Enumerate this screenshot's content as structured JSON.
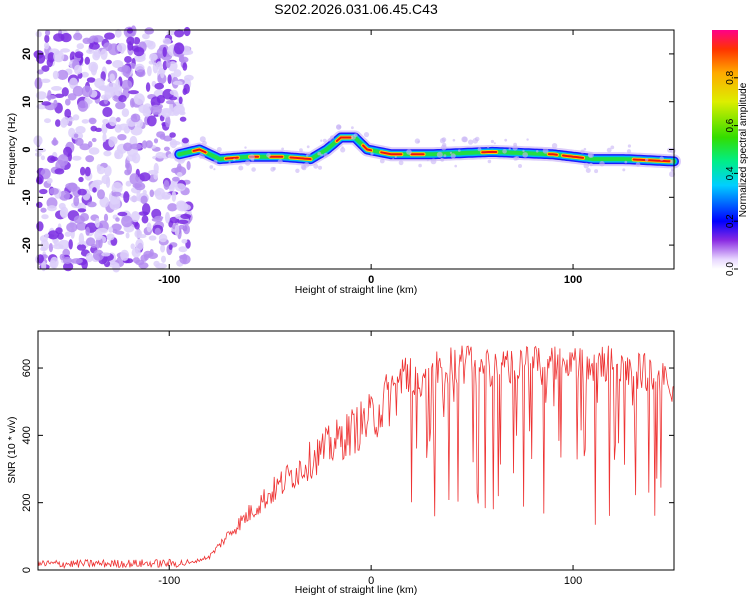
{
  "chart_data": [
    {
      "type": "heatmap",
      "title": "S202.2026.031.06.45.C43",
      "xlabel": "Height of straight line (km)",
      "ylabel": "Frequency (Hz)",
      "xlim": [
        -165,
        150
      ],
      "ylim": [
        -25,
        25
      ],
      "x_ticks": [
        -100,
        0,
        100
      ],
      "y_ticks": [
        -20,
        -10,
        0,
        10,
        20
      ],
      "noise_region_x": [
        -165,
        -90
      ],
      "ridge": {
        "description_points_x": [
          -95,
          -85,
          -75,
          -60,
          -45,
          -30,
          -22,
          -15,
          -8,
          -2,
          10,
          30,
          60,
          90,
          110,
          125,
          150
        ],
        "description_points_y": [
          -1,
          0,
          -2,
          -1.5,
          -1.5,
          -2,
          0,
          2.5,
          2.5,
          0,
          -1,
          -1,
          -0.5,
          -1,
          -2,
          -2,
          -2.5
        ]
      },
      "colorbar": {
        "label": "Normalized spectral amplitude",
        "ticks": [
          0.0,
          0.2,
          0.4,
          0.6,
          0.8
        ],
        "range": [
          0,
          1
        ]
      }
    },
    {
      "type": "line",
      "xlabel": "Height of straight line (km)",
      "ylabel": "SNR (10 * v/v)",
      "xlim": [
        -165,
        150
      ],
      "ylim": [
        0,
        710
      ],
      "x_ticks": [
        -100,
        0,
        100
      ],
      "y_ticks": [
        0,
        200,
        400,
        600
      ],
      "series_color": "#ee3333",
      "envelope": {
        "x": [
          -165,
          -90,
          -80,
          -70,
          -55,
          -40,
          -25,
          -10,
          0,
          10,
          20,
          30,
          45,
          60,
          80,
          100,
          120,
          135,
          150
        ],
        "y": [
          18,
          20,
          40,
          110,
          200,
          280,
          350,
          410,
          450,
          520,
          600,
          650,
          670,
          665,
          670,
          660,
          670,
          650,
          600
        ]
      }
    }
  ],
  "colors": {
    "line": "#ee3333",
    "noise": "#7a2be2"
  }
}
